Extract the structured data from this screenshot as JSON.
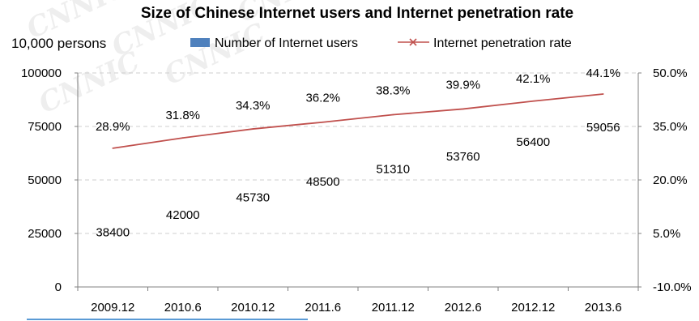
{
  "chart_data": {
    "type": "bar",
    "title": "Size of Chinese Internet users and Internet penetration rate",
    "unit_label": "10,000 persons",
    "watermark": "CNNIC",
    "categories": [
      "2009.12",
      "2010.6",
      "2010.12",
      "2011.6",
      "2011.12",
      "2012.6",
      "2012.12",
      "2013.6"
    ],
    "series": [
      {
        "name": "Number of Internet users",
        "type": "bar",
        "axis": "left",
        "values": [
          38400,
          42000,
          45730,
          48500,
          51310,
          53760,
          56400,
          59056
        ],
        "labels": [
          "38400",
          "42000",
          "45730",
          "48500",
          "51310",
          "53760",
          "56400",
          "59056"
        ],
        "color": "#4f81bd"
      },
      {
        "name": "Internet penetration rate",
        "type": "line",
        "axis": "right",
        "values": [
          28.9,
          31.8,
          34.3,
          36.2,
          38.3,
          39.9,
          42.1,
          44.1
        ],
        "labels": [
          "28.9%",
          "31.8%",
          "34.3%",
          "36.2%",
          "38.3%",
          "39.9%",
          "42.1%",
          "44.1%"
        ],
        "color": "#c0504d"
      }
    ],
    "y_left": {
      "min": 0,
      "max": 100000,
      "ticks": [
        0,
        25000,
        50000,
        75000,
        100000
      ],
      "tick_labels": [
        "0",
        "25000",
        "50000",
        "75000",
        "100000"
      ]
    },
    "y_right": {
      "min": -10,
      "max": 50,
      "ticks": [
        -10,
        5,
        20,
        35,
        50
      ],
      "tick_labels": [
        "-10.0%",
        "5.0%",
        "20.0%",
        "35.0%",
        "50.0%"
      ]
    },
    "grid": true,
    "legend": "top"
  }
}
